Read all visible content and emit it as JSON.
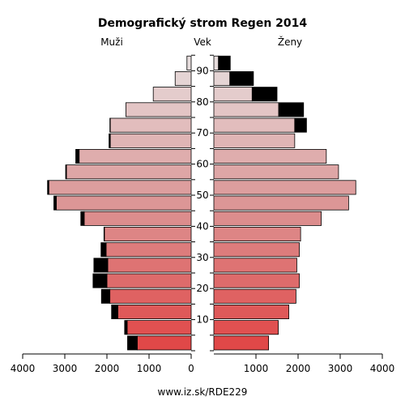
{
  "chart_data": {
    "type": "bar",
    "title": "Demografický strom Regen 2014",
    "male_label": "Muži",
    "axis_label": "Vek",
    "female_label": "Ženy",
    "footer": "www.iz.sk/RDE229",
    "age_groups": [
      "0-4",
      "5-9",
      "10-14",
      "15-19",
      "20-24",
      "25-29",
      "30-34",
      "35-39",
      "40-44",
      "45-49",
      "50-54",
      "55-59",
      "60-64",
      "65-69",
      "70-74",
      "75-79",
      "80-84",
      "85-89",
      "90+"
    ],
    "age_ticks": [
      10,
      20,
      30,
      40,
      50,
      60,
      70,
      80,
      90
    ],
    "x_ticks": [
      4000,
      3000,
      2000,
      1000,
      0,
      1000,
      2000,
      3000,
      4000
    ],
    "xlim": [
      0,
      4000
    ],
    "series": [
      {
        "name": "Muži",
        "values": [
          1280,
          1520,
          1740,
          1930,
          2000,
          1980,
          2020,
          2060,
          2540,
          3200,
          3380,
          2960,
          2660,
          1920,
          1920,
          1550,
          900,
          380,
          100
        ],
        "excess": [
          230,
          60,
          150,
          200,
          330,
          330,
          120,
          10,
          80,
          60,
          30,
          20,
          80,
          30,
          10,
          0,
          0,
          0,
          0
        ]
      },
      {
        "name": "Ženy",
        "values": [
          1300,
          1530,
          1780,
          1950,
          2030,
          1970,
          2030,
          2060,
          2550,
          3200,
          3370,
          2960,
          2670,
          1920,
          1920,
          1540,
          910,
          380,
          110
        ],
        "excess": [
          0,
          0,
          0,
          0,
          0,
          0,
          0,
          0,
          0,
          0,
          0,
          0,
          0,
          0,
          280,
          590,
          590,
          560,
          280
        ]
      }
    ],
    "colors": {
      "oldest": "#e6dcdc",
      "mid": "#dc9696",
      "youngest": "#e04848",
      "excess": "#000000"
    }
  }
}
